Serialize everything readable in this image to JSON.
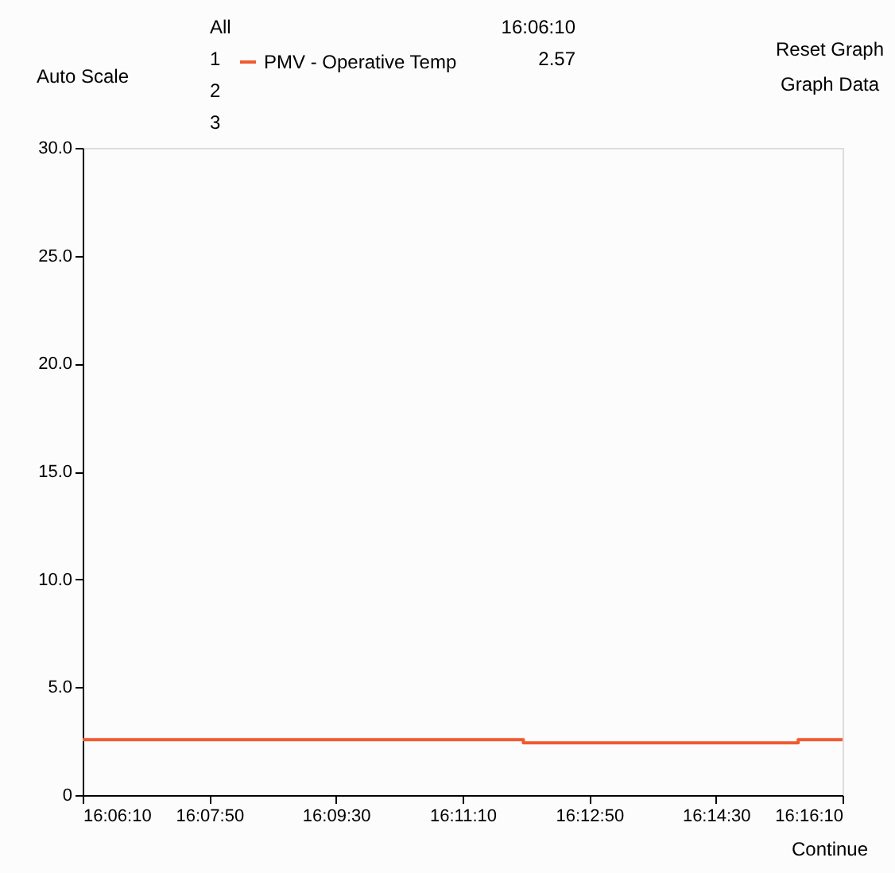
{
  "chart_data": {
    "type": "step",
    "x": [
      16.10278,
      16.19944,
      16.25972,
      16.26944
    ],
    "series": [
      {
        "name": "PMV - Operative Temp",
        "color": "#f05a30",
        "values": [
          2.57,
          2.42,
          2.57,
          2.57
        ]
      }
    ],
    "xlim": [
      16.10278,
      16.26944
    ],
    "xticks": [
      {
        "value": 16.10278,
        "label": "16:06:10"
      },
      {
        "value": 16.13056,
        "label": "16:07:50"
      },
      {
        "value": 16.15833,
        "label": "16:09:30"
      },
      {
        "value": 16.18611,
        "label": "16:11:10"
      },
      {
        "value": 16.21389,
        "label": "16:12:50"
      },
      {
        "value": 16.24167,
        "label": "16:14:30"
      },
      {
        "value": 16.26944,
        "label": "16:16:10"
      }
    ],
    "ylim": [
      0,
      30
    ],
    "yticks": [
      0,
      {
        "value": 5,
        "label": "5.0"
      },
      {
        "value": 10,
        "label": "10.0"
      },
      {
        "value": 15,
        "label": "15.0"
      },
      {
        "value": 20,
        "label": "20.0"
      },
      {
        "value": 25,
        "label": "25.0"
      },
      {
        "value": 30,
        "label": "30.0"
      }
    ],
    "legend": "top",
    "grid": false,
    "annotations": [
      "All",
      "1",
      "2",
      "3",
      "Auto Scale",
      "16:06:10",
      "2.57",
      "Reset Graph",
      "Graph Data",
      "Continue"
    ]
  }
}
